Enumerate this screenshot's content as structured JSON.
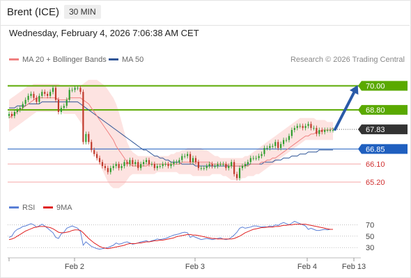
{
  "header": {
    "instrument": "Brent (ICE)",
    "timeframe": "30 MIN",
    "datetime": "Wednesday, February 4, 2026 7:06:38 AM CET"
  },
  "legend": {
    "ma20_label": "MA 20 + Bollinger Bands",
    "ma50_label": "MA 50",
    "rsi_label": "RSI",
    "rsi_ma_label": "9MA",
    "credit": "Research © 2026 Trading Central"
  },
  "colors": {
    "ma20": "#f08080",
    "ma50": "#2f5597",
    "band": "#fde3e1",
    "candle_up": "#2e9e2e",
    "candle_down": "#c0392b",
    "resistance": "#5aa900",
    "pivot": "#1f5fbf",
    "support": "#f4a6a6",
    "last_price": "#333333",
    "rsi": "#5a7fd6",
    "rsi_ma": "#e02020",
    "arrow": "#2a5aa8"
  },
  "chart_data": [
    {
      "type": "candlestick",
      "title": "",
      "x_ticks": [
        "Feb 2",
        "Feb 3",
        "Feb 4",
        "Feb 13"
      ],
      "ylim": [
        64.75,
        70.4
      ],
      "levels": [
        {
          "value": 70.0,
          "label": "70.00",
          "kind": "resistance"
        },
        {
          "value": 68.8,
          "label": "68.80",
          "kind": "resistance"
        },
        {
          "value": 67.83,
          "label": "67.83",
          "kind": "last"
        },
        {
          "value": 66.85,
          "label": "66.85",
          "kind": "pivot"
        },
        {
          "value": 66.1,
          "label": "66.10",
          "kind": "support"
        },
        {
          "value": 65.2,
          "label": "65.20",
          "kind": "support"
        }
      ],
      "close": [
        68.6,
        68.5,
        68.7,
        68.8,
        68.9,
        69.1,
        69.3,
        69.5,
        69.6,
        69.4,
        69.2,
        69.5,
        69.7,
        69.6,
        69.5,
        69.7,
        69.9,
        69.3,
        68.7,
        68.9,
        69.0,
        69.3,
        69.8,
        69.8,
        69.9,
        69.9,
        69.7,
        67.2,
        67.6,
        67.2,
        66.8,
        66.6,
        66.4,
        66.2,
        66.0,
        65.9,
        65.7,
        65.9,
        66.0,
        66.1,
        65.9,
        66.0,
        66.2,
        66.1,
        66.3,
        66.1,
        66.2,
        65.9,
        66.1,
        66.2,
        66.3,
        66.1,
        66.1,
        65.9,
        66.0,
        66.0,
        66.1,
        66.1,
        66.0,
        66.1,
        66.2,
        66.2,
        66.3,
        66.5,
        66.5,
        66.6,
        66.2,
        66.4,
        66.2,
        65.9,
        65.9,
        65.9,
        66.0,
        66.1,
        66.0,
        66.0,
        66.1,
        66.1,
        66.1,
        65.9,
        66.0,
        66.2,
        65.6,
        65.4,
        65.9,
        66.0,
        66.1,
        66.2,
        66.4,
        66.4,
        66.4,
        66.5,
        66.6,
        66.9,
        66.9,
        67.0,
        67.0,
        67.2,
        66.9,
        67.1,
        67.3,
        67.3,
        67.5,
        67.8,
        67.9,
        68.0,
        68.0,
        67.9,
        68.0,
        68.1,
        67.9,
        67.9,
        67.6,
        67.8,
        67.7,
        67.8,
        67.8,
        67.8,
        67.8
      ],
      "ma20": [
        68.4,
        68.5,
        68.6,
        68.7,
        68.8,
        68.9,
        69.0,
        69.1,
        69.2,
        69.3,
        69.4,
        69.4,
        69.4,
        69.4,
        69.4,
        69.4,
        69.4,
        69.4,
        69.3,
        69.3,
        69.3,
        69.3,
        69.4,
        69.4,
        69.4,
        69.4,
        69.4,
        69.3,
        69.2,
        69.1,
        68.9,
        68.7,
        68.5,
        68.3,
        68.1,
        67.9,
        67.7,
        67.5,
        67.3,
        67.0,
        66.8,
        66.6,
        66.4,
        66.2,
        66.1,
        66.0,
        66.0,
        66.0,
        66.0,
        66.0,
        66.0,
        66.1,
        66.1,
        66.1,
        66.1,
        66.1,
        66.1,
        66.1,
        66.1,
        66.1,
        66.1,
        66.1,
        66.1,
        66.2,
        66.2,
        66.2,
        66.2,
        66.2,
        66.2,
        66.2,
        66.2,
        66.2,
        66.2,
        66.2,
        66.1,
        66.1,
        66.1,
        66.1,
        66.1,
        66.1,
        66.0,
        66.0,
        66.0,
        66.0,
        66.0,
        66.0,
        66.0,
        66.0,
        66.1,
        66.1,
        66.1,
        66.1,
        66.2,
        66.2,
        66.3,
        66.3,
        66.4,
        66.4,
        66.5,
        66.6,
        66.7,
        66.8,
        66.9,
        67.0,
        67.1,
        67.2,
        67.3,
        67.4,
        67.5,
        67.5,
        67.6,
        67.6,
        67.7,
        67.7,
        67.8,
        67.8,
        67.8,
        67.8,
        67.9
      ],
      "ma50": [
        68.9,
        68.9,
        68.9,
        69.0,
        69.0,
        69.0,
        69.0,
        69.1,
        69.1,
        69.1,
        69.1,
        69.1,
        69.2,
        69.2,
        69.2,
        69.2,
        69.2,
        69.2,
        69.2,
        69.2,
        69.2,
        69.2,
        69.2,
        69.2,
        69.2,
        69.2,
        69.1,
        69.0,
        68.9,
        68.8,
        68.7,
        68.6,
        68.5,
        68.4,
        68.3,
        68.2,
        68.1,
        68.0,
        67.9,
        67.8,
        67.7,
        67.6,
        67.5,
        67.4,
        67.3,
        67.2,
        67.1,
        67.0,
        66.9,
        66.8,
        66.8,
        66.7,
        66.6,
        66.5,
        66.5,
        66.4,
        66.4,
        66.3,
        66.3,
        66.2,
        66.2,
        66.2,
        66.2,
        66.1,
        66.1,
        66.1,
        66.1,
        66.1,
        66.0,
        66.0,
        66.0,
        66.0,
        66.0,
        66.0,
        66.0,
        66.0,
        66.0,
        66.0,
        66.0,
        66.0,
        66.0,
        66.0,
        66.0,
        66.0,
        66.0,
        66.0,
        66.0,
        66.1,
        66.1,
        66.1,
        66.1,
        66.1,
        66.1,
        66.2,
        66.2,
        66.2,
        66.2,
        66.3,
        66.3,
        66.3,
        66.4,
        66.4,
        66.4,
        66.5,
        66.5,
        66.5,
        66.6,
        66.6,
        66.6,
        66.7,
        66.7,
        66.7,
        66.7,
        66.8,
        66.8,
        66.8,
        66.8,
        66.8,
        66.8
      ],
      "bb_upper": [
        69.3,
        69.4,
        69.5,
        69.6,
        69.7,
        69.8,
        69.9,
        70.0,
        70.0,
        70.1,
        70.1,
        70.1,
        70.1,
        70.1,
        70.1,
        70.1,
        70.1,
        70.1,
        70.1,
        70.0,
        70.0,
        70.0,
        70.0,
        70.0,
        70.0,
        70.0,
        70.0,
        70.1,
        70.2,
        70.3,
        70.3,
        70.3,
        70.3,
        70.2,
        70.1,
        70.0,
        69.8,
        69.6,
        69.4,
        69.1,
        68.7,
        68.2,
        67.7,
        67.2,
        66.9,
        66.7,
        66.6,
        66.5,
        66.5,
        66.5,
        66.5,
        66.5,
        66.5,
        66.5,
        66.5,
        66.5,
        66.5,
        66.5,
        66.5,
        66.6,
        66.6,
        66.7,
        66.7,
        66.8,
        66.8,
        66.9,
        66.9,
        66.9,
        66.9,
        66.9,
        66.9,
        66.8,
        66.8,
        66.7,
        66.6,
        66.5,
        66.5,
        66.4,
        66.4,
        66.4,
        66.4,
        66.4,
        66.4,
        66.4,
        66.4,
        66.4,
        66.5,
        66.5,
        66.6,
        66.7,
        66.8,
        66.9,
        67.0,
        67.1,
        67.2,
        67.3,
        67.4,
        67.5,
        67.6,
        67.7,
        67.8,
        67.9,
        68.0,
        68.1,
        68.2,
        68.3,
        68.4,
        68.4,
        68.4,
        68.4,
        68.4,
        68.4,
        68.3,
        68.3,
        68.3,
        68.3,
        68.2,
        68.2,
        68.2
      ],
      "bb_lower": [
        67.7,
        67.8,
        67.9,
        68.0,
        68.1,
        68.2,
        68.3,
        68.4,
        68.5,
        68.6,
        68.7,
        68.7,
        68.7,
        68.7,
        68.7,
        68.7,
        68.7,
        68.7,
        68.7,
        68.7,
        68.6,
        68.6,
        68.6,
        68.6,
        68.6,
        68.4,
        68.2,
        67.9,
        67.6,
        67.3,
        67.0,
        66.7,
        66.4,
        66.1,
        65.8,
        65.5,
        65.2,
        65.0,
        64.9,
        64.9,
        64.9,
        65.0,
        65.1,
        65.3,
        65.5,
        65.6,
        65.6,
        65.6,
        65.6,
        65.6,
        65.6,
        65.6,
        65.6,
        65.6,
        65.7,
        65.7,
        65.7,
        65.7,
        65.7,
        65.7,
        65.7,
        65.7,
        65.6,
        65.6,
        65.6,
        65.6,
        65.6,
        65.5,
        65.5,
        65.5,
        65.5,
        65.5,
        65.5,
        65.5,
        65.6,
        65.6,
        65.6,
        65.6,
        65.5,
        65.5,
        65.4,
        65.3,
        65.3,
        65.3,
        65.3,
        65.4,
        65.4,
        65.5,
        65.5,
        65.5,
        65.6,
        65.6,
        65.7,
        65.8,
        65.9,
        66.0,
        66.1,
        66.2,
        66.3,
        66.4,
        66.5,
        66.6,
        66.7,
        66.8,
        66.9,
        67.0,
        67.1,
        67.2,
        67.3,
        67.3,
        67.3,
        67.3,
        67.3,
        67.3,
        67.3,
        67.3,
        67.3,
        67.3,
        67.3
      ],
      "forecast": {
        "from": 67.83,
        "to": 70.0
      }
    },
    {
      "type": "line",
      "title": "",
      "series": [
        {
          "name": "RSI"
        },
        {
          "name": "9MA"
        }
      ],
      "y_ticks": [
        70,
        50,
        30
      ],
      "ylim": [
        18,
        84
      ],
      "guides": [
        70,
        50,
        30
      ],
      "rsi": [
        48,
        50,
        58,
        62,
        64,
        67,
        68,
        70,
        72,
        70,
        66,
        68,
        71,
        68,
        64,
        60,
        56,
        48,
        46,
        54,
        57,
        64,
        66,
        68,
        66,
        64,
        58,
        34,
        40,
        36,
        32,
        30,
        28,
        27,
        28,
        29,
        30,
        32,
        34,
        38,
        36,
        37,
        39,
        40,
        38,
        36,
        37,
        38,
        40,
        41,
        42,
        40,
        42,
        43,
        45,
        44,
        45,
        46,
        48,
        50,
        52,
        53,
        54,
        56,
        57,
        56,
        48,
        50,
        48,
        46,
        44,
        45,
        46,
        45,
        44,
        45,
        46,
        47,
        45,
        44,
        45,
        48,
        52,
        57,
        64,
        66,
        64,
        65,
        66,
        68,
        68,
        67,
        66,
        67,
        66,
        68,
        67,
        70,
        69,
        72,
        74,
        72,
        70,
        73,
        76,
        74,
        72,
        70,
        68,
        62,
        64,
        62,
        60,
        60,
        61,
        62,
        61,
        62,
        62
      ],
      "rsi_ma": [
        44,
        45,
        47,
        50,
        53,
        56,
        59,
        61,
        63,
        65,
        66,
        67,
        67,
        67,
        66,
        65,
        63,
        60,
        57,
        56,
        56,
        57,
        58,
        60,
        61,
        61,
        60,
        56,
        51,
        46,
        42,
        38,
        35,
        32,
        30,
        29,
        28,
        29,
        30,
        31,
        32,
        33,
        34,
        36,
        37,
        37,
        37,
        38,
        38,
        39,
        40,
        40,
        41,
        42,
        42,
        43,
        43,
        44,
        45,
        46,
        47,
        49,
        50,
        51,
        52,
        53,
        53,
        52,
        52,
        51,
        50,
        49,
        48,
        47,
        46,
        46,
        45,
        45,
        45,
        45,
        45,
        45,
        46,
        48,
        50,
        53,
        56,
        58,
        60,
        62,
        63,
        64,
        65,
        65,
        66,
        66,
        66,
        67,
        67,
        68,
        69,
        69,
        70,
        70,
        71,
        71,
        71,
        71,
        71,
        70,
        69,
        68,
        67,
        66,
        65,
        64,
        63,
        62,
        62
      ]
    }
  ]
}
